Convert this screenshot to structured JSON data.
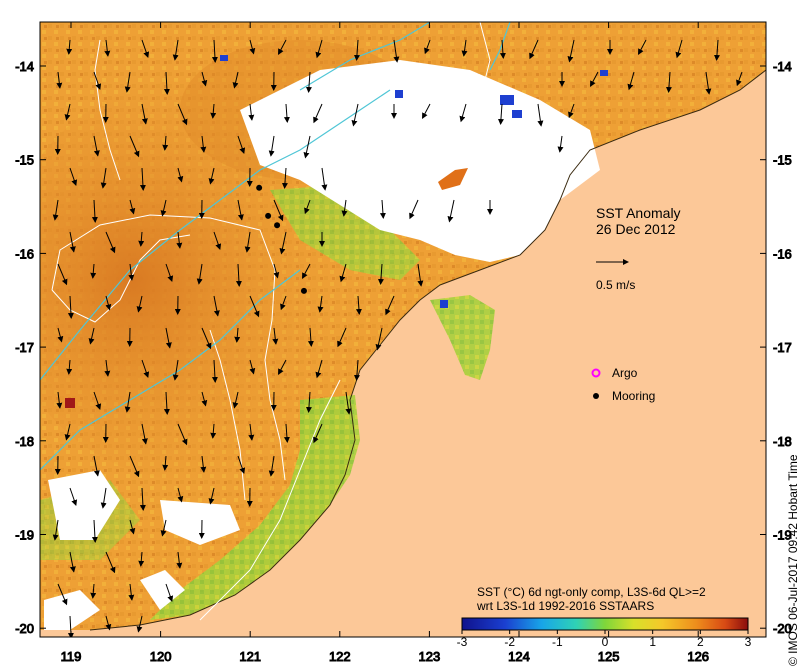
{
  "map": {
    "title_line1": "SST Anomaly",
    "title_line2": "26 Dec 2012",
    "scale_label": "0.5 m/s",
    "legend": [
      {
        "label": "Argo",
        "symbol": "magenta-circle-icon",
        "color": "#ff00ff"
      },
      {
        "label": "Mooring",
        "symbol": "black-dot-icon",
        "color": "#000000"
      }
    ],
    "caption_line1": "SST (°C) 6d ngt-only comp, L3S-6d QL>=2",
    "caption_line2": "wrt L3S-1d 1992-2016 SSTAARS",
    "credit": "© IMOS 06-Jul-2017 09:42 Hobart Time",
    "x_ticks": [
      "119",
      "120",
      "121",
      "122",
      "123",
      "124",
      "125",
      "126"
    ],
    "y_ticks": [
      "-14",
      "-15",
      "-16",
      "-17",
      "-18",
      "-19",
      "-20"
    ],
    "colorbar_ticks": [
      "-3",
      "-2",
      "-1",
      "0",
      "1",
      "2",
      "3"
    ],
    "colors": {
      "land": "#fcc898",
      "water_warm": "#eea035",
      "water_hot": "#d97a22",
      "water_mid": "#f1bd3c",
      "water_cool": "#9ccd3a",
      "cloud": "#ffffff",
      "contour": "#ffffff",
      "isobath": "#4fc6d6"
    },
    "moorings": [
      {
        "lon": 121.1,
        "lat": -15.3
      },
      {
        "lon": 121.2,
        "lat": -15.6
      },
      {
        "lon": 121.3,
        "lat": -15.7
      },
      {
        "lon": 121.6,
        "lat": -16.4
      }
    ]
  }
}
